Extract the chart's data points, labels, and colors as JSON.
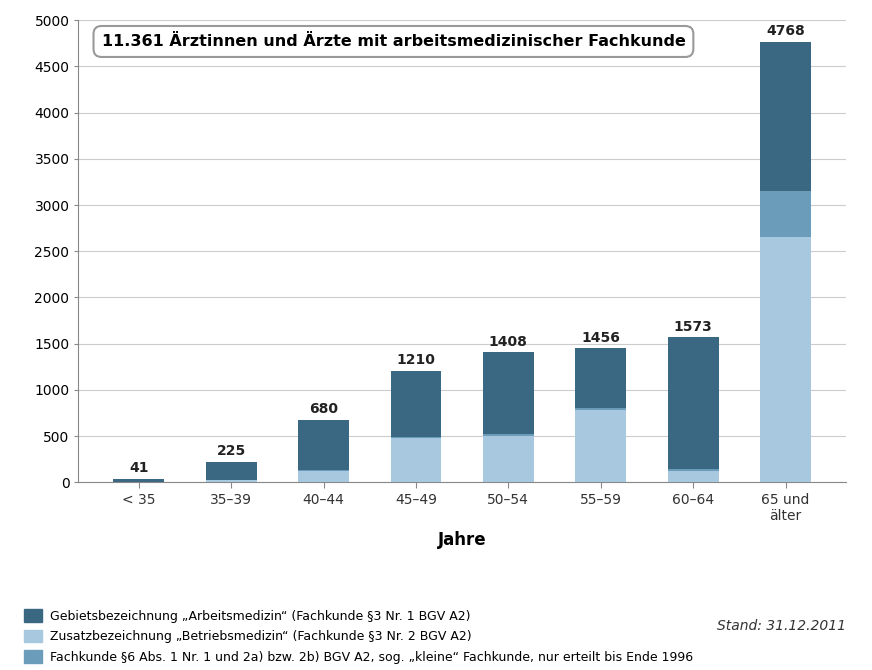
{
  "categories": [
    "< 35",
    "35–39",
    "40–44",
    "45–49",
    "50–54",
    "55–59",
    "60–64",
    "65 und\nälter"
  ],
  "totals": [
    41,
    225,
    680,
    1210,
    1408,
    1456,
    1573,
    4768
  ],
  "seg_light": [
    5,
    25,
    120,
    480,
    500,
    780,
    120,
    2650
  ],
  "seg_mid": [
    2,
    5,
    15,
    15,
    20,
    30,
    20,
    500
  ],
  "color_dark": "#3a6882",
  "color_light": "#a8c8e0",
  "color_mid": "#6b9cba",
  "title_box_text": "11.361 Ärztinnen und Ärzte mit arbeitsmedizinischer Fachkunde",
  "xlabel": "Jahre",
  "ylim": [
    0,
    5000
  ],
  "yticks": [
    0,
    500,
    1000,
    1500,
    2000,
    2500,
    3000,
    3500,
    4000,
    4500,
    5000
  ],
  "legend1": "Gebietsbezeichnung „Arbeitsmedizin“ (Fachkunde §3 Nr. 1 BGV A2)",
  "legend2": "Zusatzbezeichnung „Betriebsmedizin“ (Fachkunde §3 Nr. 2 BGV A2)",
  "legend3": "Fachkunde §6 Abs. 1 Nr. 1 und 2a) bzw. 2b) BGV A2, sog. „kleine“ Fachkunde, nur erteilt bis Ende 1996",
  "stand_text": "Stand: 31.12.2011",
  "background_color": "#ffffff",
  "plot_bg_color": "#ffffff",
  "grid_color": "#cccccc",
  "bar_width": 0.55
}
